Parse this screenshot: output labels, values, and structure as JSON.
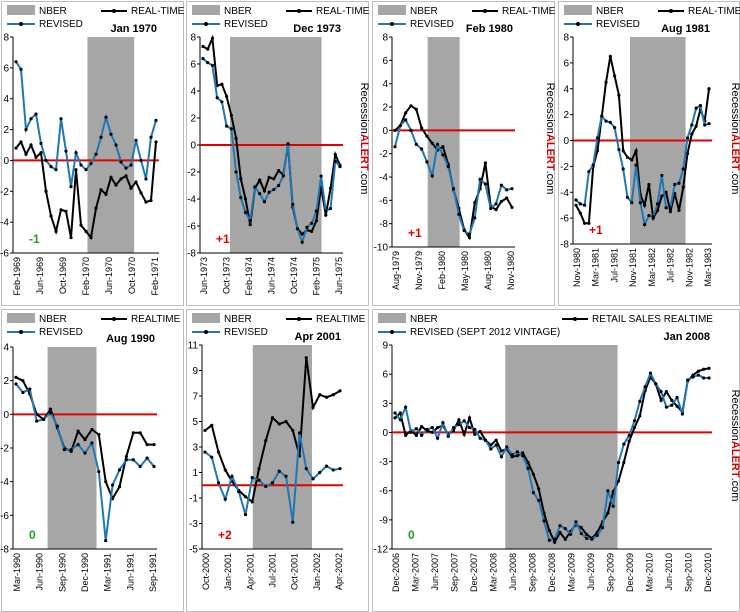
{
  "brand": {
    "pre": "Recession",
    "alert": "ALERT",
    "post": ".com"
  },
  "colors": {
    "realtime": "#000000",
    "revised": "#1f77b4",
    "nber": "#a6a6a6",
    "zero": "#e00000",
    "positive_note": "#e00000",
    "zero_note": "#22a022",
    "negative_note": "#22a022"
  },
  "chart_data": [
    {
      "type": "line",
      "title": "Jan 1970",
      "legend": [
        "NBER",
        "REAL-TIME",
        "REVISED"
      ],
      "y_ticks": [
        "8",
        "6",
        "4",
        "2",
        "0",
        "-2",
        "-4",
        "-6"
      ],
      "x_ticks": [
        "Feb-1969",
        "Jun-1969",
        "Oct-1969",
        "Feb-1970",
        "Jun-1970",
        "Oct-1970",
        "Feb-1971"
      ],
      "ylim": [
        -6,
        8
      ],
      "nber_span": [
        0.51,
        0.83
      ],
      "note": "-1",
      "series": [
        {
          "name": "REAL-TIME",
          "values": [
            0.8,
            1.2,
            0.4,
            1.0,
            0.2,
            0.5,
            -2.0,
            -3.6,
            -4.6,
            -3.2,
            -3.3,
            -5.0,
            -0.6,
            -4.2,
            -4.6,
            -5.0,
            -3.1,
            -1.9,
            -2.2,
            -1.1,
            -1.6,
            -1.2,
            -1.0,
            -1.8,
            -1.4,
            -2.1,
            -2.7,
            -2.6,
            1.2
          ]
        },
        {
          "name": "REVISED",
          "values": [
            6.4,
            5.9,
            2.0,
            2.7,
            3.0,
            1.1,
            0.0,
            -0.4,
            -0.6,
            2.7,
            0.6,
            -1.7,
            0.5,
            -0.3,
            -0.6,
            -0.2,
            0.4,
            1.5,
            2.8,
            1.7,
            1.0,
            -0.1,
            -0.5,
            -0.3,
            1.3,
            0.0,
            -1.2,
            1.5,
            2.6
          ]
        }
      ]
    },
    {
      "type": "line",
      "title": "Dec 1973",
      "legend": [
        "NBER",
        "REAL-TIME",
        "REVISED"
      ],
      "y_ticks": [
        "8",
        "6",
        "4",
        "2",
        "0",
        "-2",
        "-4",
        "-6",
        "-8"
      ],
      "x_ticks": [
        "Jun-1973",
        "Oct-1973",
        "Feb-1974",
        "Jun-1974",
        "Oct-1974",
        "Feb-1975",
        "Jun-1975"
      ],
      "ylim": [
        -8,
        8
      ],
      "nber_span": [
        0.21,
        0.85
      ],
      "note": "+1",
      "series": [
        {
          "name": "REAL-TIME",
          "values": [
            7.3,
            7.1,
            7.9,
            4.4,
            4.5,
            3.6,
            2.2,
            0.5,
            -2.5,
            -4.0,
            -5.9,
            -3.2,
            -2.6,
            -3.4,
            -2.4,
            -2.5,
            -1.9,
            -2.2,
            0.0,
            -4.6,
            -6.2,
            -6.6,
            -6.3,
            -6.4,
            -5.6,
            -3.1,
            -5.2,
            -3.2,
            -0.7,
            -1.5
          ]
        },
        {
          "name": "REVISED",
          "values": [
            6.4,
            6.1,
            5.9,
            3.5,
            3.2,
            1.4,
            1.2,
            -2.0,
            -3.9,
            -5.0,
            -5.6,
            -3.1,
            -3.6,
            -4.2,
            -3.5,
            -3.3,
            -3.0,
            -2.3,
            0.1,
            -4.4,
            -6.2,
            -7.2,
            -6.1,
            -5.8,
            -4.9,
            -2.3,
            -4.9,
            -4.7,
            -1.2,
            -1.6
          ]
        }
      ]
    },
    {
      "type": "line",
      "title": "Feb 1980",
      "legend": [
        "NBER",
        "REAL-TIME",
        "REVISED"
      ],
      "y_ticks": [
        "8",
        "6",
        "4",
        "2",
        "0",
        "-2",
        "-4",
        "-6",
        "-8",
        "-10"
      ],
      "x_ticks": [
        "Aug-1979",
        "Nov-1979",
        "Feb-1980",
        "May-1980",
        "Aug-1980",
        "Nov-1980"
      ],
      "ylim": [
        -10,
        8
      ],
      "nber_span": [
        0.29,
        0.55
      ],
      "note": "+1",
      "series": [
        {
          "name": "REAL-TIME",
          "values": [
            0.0,
            0.4,
            1.5,
            2.1,
            1.8,
            0.2,
            -0.5,
            -1.1,
            -1.7,
            -1.4,
            -2.9,
            -5.1,
            -6.7,
            -8.5,
            -9.2,
            -6.2,
            -5.0,
            -2.8,
            -6.5,
            -6.8,
            -6.1,
            -5.8,
            -6.6
          ]
        },
        {
          "name": "REVISED",
          "values": [
            -1.4,
            0.4,
            0.9,
            0.0,
            -1.2,
            -1.6,
            -2.7,
            -3.9,
            -1.2,
            -2.1,
            -3.1,
            -5.0,
            -7.2,
            -8.6,
            -8.9,
            -7.5,
            -4.2,
            -4.6,
            -6.7,
            -6.3,
            -4.7,
            -5.1,
            -5.0
          ]
        }
      ]
    },
    {
      "type": "line",
      "title": "Aug 1981",
      "legend": [
        "NBER",
        "REAL-TIME",
        "REVISED"
      ],
      "y_ticks": [
        "8",
        "6",
        "4",
        "2",
        "0",
        "-2",
        "-4",
        "-6",
        "-8"
      ],
      "x_ticks": [
        "Nov-1980",
        "Mar-1981",
        "Jul-1981",
        "Nov-1981",
        "Mar-1982",
        "Jul-1982",
        "Nov-1982",
        "Mar-1983"
      ],
      "ylim": [
        -8,
        8
      ],
      "nber_span": [
        0.41,
        0.81
      ],
      "note": "+1",
      "series": [
        {
          "name": "REAL-TIME",
          "values": [
            -5.0,
            -5.6,
            -6.4,
            -6.4,
            -2.0,
            -0.8,
            1.8,
            4.5,
            6.5,
            5.0,
            3.5,
            -0.8,
            -1.3,
            -1.5,
            -0.8,
            -4.2,
            -5.0,
            -3.4,
            -6.0,
            -5.4,
            -4.3,
            -4.0,
            -5.5,
            -4.1,
            -5.4,
            -3.6,
            -1.0,
            0.5,
            1.1,
            2.4,
            1.5,
            4.0
          ]
        },
        {
          "name": "REVISED",
          "values": [
            -4.6,
            -4.9,
            -5.0,
            -2.4,
            -1.9,
            0.2,
            1.9,
            1.5,
            1.4,
            1.0,
            -0.7,
            -2.2,
            -4.4,
            -4.8,
            -1.9,
            -4.8,
            -6.5,
            -5.8,
            -5.9,
            -4.9,
            -2.7,
            -5.2,
            -5.2,
            -3.4,
            -3.3,
            -2.2,
            0.2,
            1.2,
            2.5,
            2.7,
            1.2,
            1.3
          ]
        }
      ]
    },
    {
      "type": "line",
      "title": "Aug 1990",
      "legend": [
        "NBER",
        "REALTIME",
        "REVISED"
      ],
      "y_ticks": [
        "4",
        "2",
        "0",
        "-2",
        "-4",
        "-6",
        "-8"
      ],
      "x_ticks": [
        "Mar-1990",
        "Jun-1990",
        "Sep-1990",
        "Dec-1990",
        "Mar-1991",
        "Jun-1991",
        "Sep-1991"
      ],
      "ylim": [
        -8,
        4
      ],
      "nber_span": [
        0.24,
        0.58
      ],
      "note": "0",
      "series": [
        {
          "name": "REALTIME",
          "values": [
            2.2,
            2.0,
            1.2,
            0.0,
            -0.3,
            0.3,
            -0.8,
            -2.0,
            -2.2,
            -1.0,
            -1.5,
            -0.9,
            -1.2,
            -4.0,
            -5.0,
            -4.3,
            -2.5,
            -1.1,
            -1.1,
            -1.8,
            -1.8
          ]
        },
        {
          "name": "REVISED",
          "values": [
            1.8,
            1.3,
            1.5,
            -0.4,
            -0.3,
            0.1,
            -0.7,
            -2.1,
            -2.1,
            -1.8,
            -2.3,
            -1.7,
            -3.4,
            -7.5,
            -4.2,
            -3.3,
            -2.7,
            -2.7,
            -3.1,
            -2.6,
            -3.1
          ]
        }
      ]
    },
    {
      "type": "line",
      "title": "Apr 2001",
      "legend": [
        "NBER",
        "REALTIME",
        "REVISED"
      ],
      "y_ticks": [
        "11",
        "9",
        "7",
        "5",
        "3",
        "1",
        "-1",
        "-3",
        "-5"
      ],
      "x_ticks": [
        "Oct-2000",
        "Jan-2001",
        "Apr-2001",
        "Jul-2001",
        "Oct-2001",
        "Jan-2002",
        "Apr-2002"
      ],
      "ylim": [
        -5,
        11
      ],
      "nber_span": [
        0.36,
        0.78
      ],
      "note": "+2",
      "series": [
        {
          "name": "REALTIME",
          "values": [
            4.3,
            4.7,
            2.6,
            1.2,
            0.3,
            -0.4,
            -0.9,
            -1.3,
            1.3,
            3.5,
            5.3,
            4.8,
            5.0,
            4.3,
            2.3,
            10.0,
            6.1,
            7.1,
            6.9,
            7.1,
            7.4
          ]
        },
        {
          "name": "REVISED",
          "values": [
            2.6,
            2.2,
            0.2,
            -1.1,
            0.7,
            -0.5,
            -2.3,
            0.6,
            0.4,
            -0.1,
            0.2,
            1.1,
            0.7,
            -2.9,
            4.1,
            1.3,
            0.5,
            1.0,
            1.5,
            1.2,
            1.3
          ]
        }
      ]
    },
    {
      "type": "line",
      "title": "Jan 2008",
      "legend": [
        "NBER",
        "RETAIL SALES REALTIME",
        "REVISED (SEPT 2012 VINTAGE)"
      ],
      "y_ticks": [
        "9",
        "6",
        "3",
        "0",
        "-3",
        "-6",
        "-9",
        "-12"
      ],
      "x_ticks": [
        "Dec-2006",
        "Mar-2007",
        "Jun-2007",
        "Sep-2007",
        "Dec-2007",
        "Mar-2008",
        "Jun-2008",
        "Sep-2008",
        "Dec-2008",
        "Mar-2009",
        "Jun-2009",
        "Sep-2009",
        "Dec-2009",
        "Mar-2010",
        "Jun-2010",
        "Sep-2010",
        "Dec-2010"
      ],
      "ylim": [
        -12,
        9
      ],
      "nber_span": [
        0.354,
        0.705
      ],
      "note": "0",
      "series": [
        {
          "name": "RETAIL SALES REALTIME",
          "values": [
            1.5,
            2.0,
            -0.3,
            0.2,
            -0.3,
            0.6,
            0.2,
            0.0,
            0.5,
            0.7,
            -0.2,
            0.2,
            1.3,
            -0.2,
            1.5,
            -0.2,
            0.1,
            -0.8,
            -1.3,
            -0.8,
            -1.9,
            -1.7,
            -2.5,
            -2.4,
            -2.1,
            -3.1,
            -4.3,
            -5.8,
            -8.3,
            -10.1,
            -11.3,
            -10.3,
            -11.0,
            -10.2,
            -9.5,
            -9.8,
            -10.5,
            -10.9,
            -10.3,
            -9.2,
            -8.3,
            -6.1,
            -5.0,
            -3.1,
            -0.9,
            0.5,
            1.7,
            4.3,
            5.7,
            5.0,
            3.3,
            4.2,
            3.3,
            2.7,
            2.1,
            5.3,
            5.9,
            6.3,
            6.5,
            6.6
          ]
        },
        {
          "name": "REVISED (SEPT 2012 VINTAGE)",
          "values": [
            2.0,
            1.3,
            2.6,
            0.0,
            0.4,
            -0.3,
            0.3,
            0.5,
            -0.6,
            1.0,
            -0.4,
            0.5,
            0.8,
            1.2,
            0.5,
            0.3,
            -0.6,
            -0.8,
            -1.7,
            -1.3,
            -2.5,
            -1.5,
            -2.3,
            -2.0,
            -2.4,
            -3.7,
            -6.2,
            -7.0,
            -9.1,
            -11.1,
            -11.0,
            -9.6,
            -9.9,
            -10.5,
            -9.2,
            -10.4,
            -10.9,
            -11.0,
            -10.6,
            -9.8,
            -6.0,
            -7.6,
            -3.1,
            -1.2,
            -0.3,
            1.2,
            3.2,
            4.7,
            6.1,
            5.0,
            4.2,
            2.6,
            2.8,
            3.6,
            1.9,
            5.4,
            5.7,
            5.9,
            5.6,
            5.6
          ]
        }
      ]
    }
  ]
}
